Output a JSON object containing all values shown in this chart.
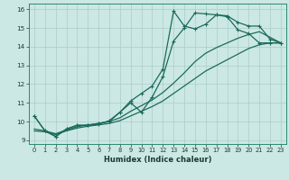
{
  "xlabel": "Humidex (Indice chaleur)",
  "bg_color": "#cce8e4",
  "grid_color": "#aaccca",
  "line_color": "#1a6b5a",
  "xlim": [
    -0.5,
    23.5
  ],
  "ylim": [
    8.8,
    16.3
  ],
  "xticks": [
    0,
    1,
    2,
    3,
    4,
    5,
    6,
    7,
    8,
    9,
    10,
    11,
    12,
    13,
    14,
    15,
    16,
    17,
    18,
    19,
    20,
    21,
    22,
    23
  ],
  "yticks": [
    9,
    10,
    11,
    12,
    13,
    14,
    15,
    16
  ],
  "line1_x": [
    0,
    1,
    2,
    3,
    4,
    5,
    6,
    7,
    8,
    9,
    10,
    11,
    12,
    13,
    14,
    15,
    16,
    17,
    18,
    19,
    20,
    21,
    22,
    23
  ],
  "line1_y": [
    10.3,
    9.5,
    9.2,
    9.6,
    9.8,
    9.8,
    9.85,
    10.05,
    10.5,
    11.0,
    10.5,
    11.3,
    12.4,
    14.3,
    15.0,
    15.8,
    15.75,
    15.7,
    15.65,
    15.3,
    15.1,
    15.1,
    14.4,
    14.2
  ],
  "line2_x": [
    0,
    1,
    2,
    3,
    4,
    5,
    6,
    7,
    8,
    9,
    10,
    11,
    12,
    13,
    14,
    15,
    16,
    17,
    18,
    19,
    20,
    21,
    22,
    23
  ],
  "line2_y": [
    10.3,
    9.5,
    9.2,
    9.6,
    9.8,
    9.8,
    9.9,
    10.0,
    10.5,
    11.1,
    11.5,
    11.9,
    12.8,
    15.9,
    15.1,
    14.95,
    15.2,
    15.7,
    15.6,
    14.9,
    14.7,
    14.2,
    14.2,
    14.2
  ],
  "line3_x": [
    0,
    1,
    2,
    3,
    4,
    5,
    6,
    7,
    8,
    9,
    10,
    11,
    12,
    13,
    14,
    15,
    16,
    17,
    18,
    19,
    20,
    21,
    22,
    23
  ],
  "line3_y": [
    9.5,
    9.45,
    9.3,
    9.5,
    9.65,
    9.75,
    9.82,
    9.9,
    10.05,
    10.3,
    10.55,
    10.8,
    11.1,
    11.5,
    11.9,
    12.3,
    12.7,
    13.0,
    13.3,
    13.6,
    13.9,
    14.1,
    14.2,
    14.2
  ],
  "line4_x": [
    0,
    1,
    2,
    3,
    4,
    5,
    6,
    7,
    8,
    9,
    10,
    11,
    12,
    13,
    14,
    15,
    16,
    17,
    18,
    19,
    20,
    21,
    22,
    23
  ],
  "line4_y": [
    9.6,
    9.5,
    9.35,
    9.55,
    9.72,
    9.82,
    9.9,
    10.0,
    10.2,
    10.55,
    10.85,
    11.15,
    11.55,
    12.05,
    12.6,
    13.2,
    13.65,
    13.95,
    14.2,
    14.45,
    14.65,
    14.8,
    14.5,
    14.2
  ]
}
